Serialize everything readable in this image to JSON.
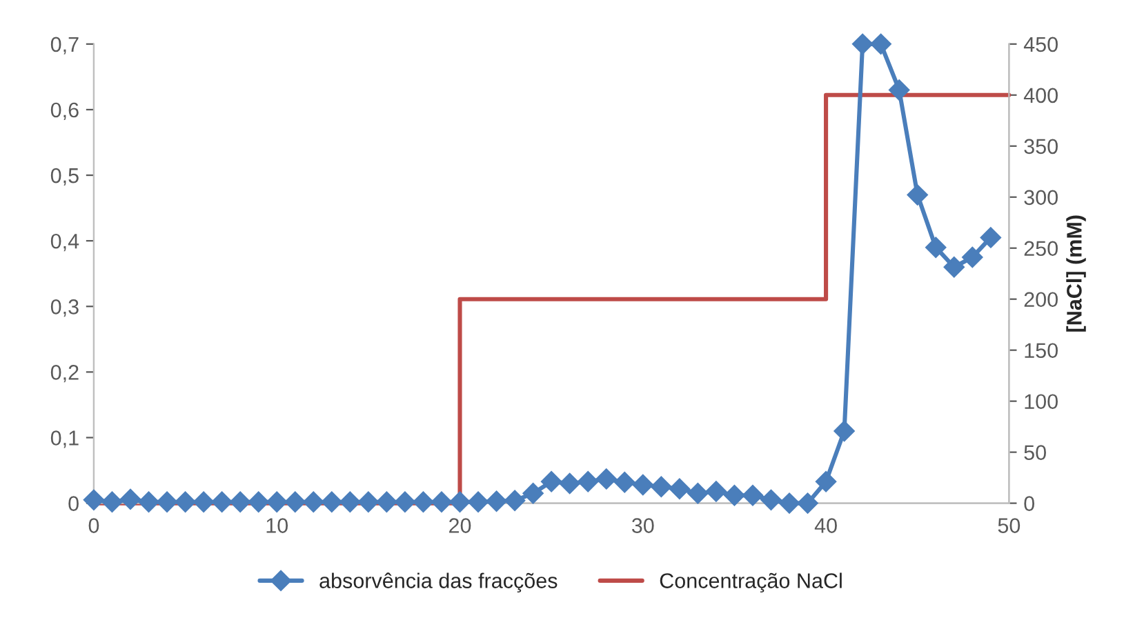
{
  "chart_data": {
    "type": "line",
    "y2label": "[NaCl] (mM)",
    "xlim": [
      0,
      50
    ],
    "xticks": [
      0,
      10,
      20,
      30,
      40,
      50
    ],
    "ylim": [
      0,
      0.7
    ],
    "yticks": [
      {
        "value": 0,
        "label": "0"
      },
      {
        "value": 0.1,
        "label": "0,1"
      },
      {
        "value": 0.2,
        "label": "0,2"
      },
      {
        "value": 0.3,
        "label": "0,3"
      },
      {
        "value": 0.4,
        "label": "0,4"
      },
      {
        "value": 0.5,
        "label": "0,5"
      },
      {
        "value": 0.6,
        "label": "0,6"
      },
      {
        "value": 0.7,
        "label": "0,7"
      }
    ],
    "y2lim": [
      0,
      450
    ],
    "y2ticks": [
      0,
      50,
      100,
      150,
      200,
      250,
      300,
      350,
      400,
      450
    ],
    "grid": false,
    "legend": "bottom",
    "series": [
      {
        "name": "absorvência das fracções",
        "color": "#4a7ebb",
        "marker": "diamond",
        "x": [
          0,
          1,
          2,
          3,
          4,
          5,
          6,
          7,
          8,
          9,
          10,
          11,
          12,
          13,
          14,
          15,
          16,
          17,
          18,
          19,
          20,
          21,
          22,
          23,
          24,
          25,
          26,
          27,
          28,
          29,
          30,
          31,
          32,
          33,
          34,
          35,
          36,
          37,
          38,
          39,
          40,
          41,
          42,
          43,
          44,
          45,
          46,
          47,
          48,
          49
        ],
        "values": [
          0.005,
          0.002,
          0.006,
          0.002,
          0.002,
          0.002,
          0.002,
          0.002,
          0.002,
          0.002,
          0.002,
          0.002,
          0.002,
          0.002,
          0.002,
          0.002,
          0.002,
          0.002,
          0.002,
          0.002,
          0.002,
          0.002,
          0.003,
          0.004,
          0.015,
          0.033,
          0.03,
          0.033,
          0.037,
          0.032,
          0.028,
          0.025,
          0.022,
          0.015,
          0.018,
          0.012,
          0.012,
          0.005,
          0.0,
          0.0,
          0.033,
          0.11,
          0.7,
          0.7,
          0.63,
          0.47,
          0.39,
          0.36,
          0.375,
          0.405
        ]
      },
      {
        "name": "Concentração NaCl",
        "color": "#be4b48",
        "marker": "none",
        "axis": "y2",
        "x": [
          0,
          20,
          20,
          40,
          40,
          50
        ],
        "values": [
          0,
          0,
          200,
          200,
          400,
          400
        ]
      }
    ]
  }
}
